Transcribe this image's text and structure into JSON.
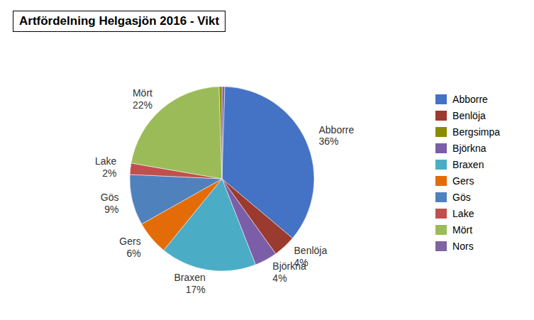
{
  "chart_data": {
    "type": "pie",
    "title": "Artfördelning Helgasjön 2016 - Vikt",
    "categories": [
      "Nors",
      "Abborre",
      "Benlöja",
      "Björkna",
      "Braxen",
      "Gers",
      "Gös",
      "Lake",
      "Mört",
      "Bergsimpa"
    ],
    "values": [
      0.5,
      36,
      4,
      4,
      17,
      6,
      9,
      2,
      22,
      0.5
    ],
    "colors": [
      "#8064A2",
      "#4472C4",
      "#9B3A2E",
      "#7B5EA7",
      "#4BACC6",
      "#E36C09",
      "#4F81BD",
      "#C0504D",
      "#9BBB59",
      "#8B8B00"
    ],
    "data_labels": true,
    "value_labels": [
      null,
      "36%",
      "4%",
      "4%",
      "17%",
      "6%",
      "9%",
      "2%",
      "22%",
      null
    ],
    "legend": "right",
    "legend_labels": [
      "Abborre",
      "Benlöja",
      "Bergsimpa",
      "Björkna",
      "Braxen",
      "Gers",
      "Gös",
      "Lake",
      "Mört",
      "Nors"
    ],
    "legend_colors": [
      "#4472C4",
      "#9B3A2E",
      "#8B8B00",
      "#7B5EA7",
      "#4BACC6",
      "#E36C09",
      "#4F81BD",
      "#C0504D",
      "#9BBB59",
      "#8064A2"
    ]
  }
}
